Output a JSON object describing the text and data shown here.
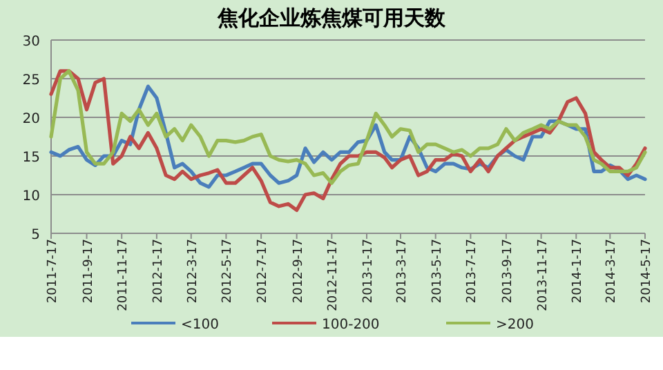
{
  "chart_data": {
    "type": "line",
    "title": "焦化企业炼焦煤可用天数",
    "x": [
      "2011-07-17",
      "2011-08-02",
      "2011-08-17",
      "2011-09-02",
      "2011-09-17",
      "2011-10-02",
      "2011-10-17",
      "2011-11-02",
      "2011-11-17",
      "2011-12-02",
      "2011-12-17",
      "2012-01-02",
      "2012-01-17",
      "2012-02-02",
      "2012-02-17",
      "2012-03-02",
      "2012-03-17",
      "2012-04-02",
      "2012-04-17",
      "2012-05-02",
      "2012-05-17",
      "2012-06-02",
      "2012-06-17",
      "2012-07-02",
      "2012-07-17",
      "2012-08-02",
      "2012-08-17",
      "2012-09-02",
      "2012-09-17",
      "2012-10-02",
      "2012-10-17",
      "2012-11-02",
      "2012-11-17",
      "2012-12-02",
      "2012-12-17",
      "2013-01-02",
      "2013-01-17",
      "2013-02-02",
      "2013-02-17",
      "2013-03-02",
      "2013-03-17",
      "2013-04-02",
      "2013-04-17",
      "2013-05-02",
      "2013-05-17",
      "2013-06-02",
      "2013-06-17",
      "2013-07-02",
      "2013-07-17",
      "2013-08-02",
      "2013-08-17",
      "2013-09-02",
      "2013-09-17",
      "2013-10-02",
      "2013-10-17",
      "2013-11-02",
      "2013-11-17",
      "2013-12-02",
      "2013-12-17",
      "2014-01-02",
      "2014-01-17",
      "2014-02-02",
      "2014-02-17",
      "2014-03-02",
      "2014-03-17",
      "2014-04-02",
      "2014-04-17",
      "2014-05-02",
      "2014-05-17"
    ],
    "series": [
      {
        "name": "<100",
        "color": "#4a7ebb",
        "values": [
          15.5,
          15,
          15.8,
          16.2,
          14.5,
          13.8,
          15,
          15,
          17,
          16.5,
          21,
          24,
          22.5,
          18,
          13.5,
          14,
          13,
          11.5,
          11,
          12.5,
          12.5,
          13,
          13.5,
          14,
          14,
          12.5,
          11.5,
          11.8,
          12.5,
          16,
          14.2,
          15.5,
          14.5,
          15.5,
          15.5,
          16.8,
          17,
          19,
          15.5,
          14.5,
          14.5,
          17.5,
          16,
          13.5,
          13,
          14,
          14,
          13.5,
          13.3,
          14,
          13.5,
          15,
          15.8,
          15,
          14.5,
          17.5,
          17.5,
          19.5,
          19.5,
          19,
          18.5,
          18.5,
          13,
          13,
          13.8,
          13.2,
          12,
          12.5,
          12
        ]
      },
      {
        "name": "100-200",
        "color": "#be4b48",
        "values": [
          23,
          26,
          26,
          25,
          21,
          24.5,
          25,
          14,
          15,
          17.5,
          16,
          18,
          16,
          12.5,
          12,
          13,
          12,
          12.5,
          12.8,
          13.2,
          11.5,
          11.5,
          12.5,
          13.5,
          11.8,
          9,
          8.5,
          8.8,
          8,
          10,
          10.2,
          9.5,
          12,
          14,
          15,
          15,
          15.5,
          15.5,
          14.8,
          13.5,
          14.5,
          15,
          12.5,
          13,
          14.5,
          14.5,
          15.3,
          15,
          13,
          14.5,
          13,
          15,
          16,
          17,
          17.5,
          18,
          18.5,
          18,
          19.5,
          22,
          22.5,
          20.5,
          15.5,
          14.5,
          13.5,
          13.5,
          12.5,
          14,
          16
        ]
      },
      {
        "name": ">200",
        "color": "#98b954",
        "values": [
          17.5,
          25,
          26,
          23.5,
          15.5,
          14,
          14,
          15.5,
          20.5,
          19.5,
          21,
          19,
          20.5,
          17.5,
          18.5,
          17,
          19,
          17.5,
          15,
          17,
          17,
          16.8,
          17,
          17.5,
          17.8,
          15,
          14.5,
          14.3,
          14.5,
          14,
          12.5,
          12.8,
          11.5,
          13,
          13.8,
          14,
          17,
          20.5,
          19,
          17.5,
          18.5,
          18.3,
          15.5,
          16.5,
          16.5,
          16,
          15.5,
          15.8,
          15,
          16,
          16,
          16.5,
          18.5,
          17,
          18,
          18.5,
          19,
          18.5,
          19.5,
          19,
          19,
          17.5,
          14.5,
          14,
          13,
          13,
          13,
          13.5,
          15.5
        ]
      }
    ],
    "xlim": [
      "2011-07-17",
      "2014-05-17"
    ],
    "xticks": [
      {
        "value": "2011-07-17",
        "label": "2011-7-17"
      },
      {
        "value": "2011-09-17",
        "label": "2011-9-17"
      },
      {
        "value": "2011-11-17",
        "label": "2011-11-17"
      },
      {
        "value": "2012-01-17",
        "label": "2012-1-17"
      },
      {
        "value": "2012-03-17",
        "label": "2012-3-17"
      },
      {
        "value": "2012-05-17",
        "label": "2012-5-17"
      },
      {
        "value": "2012-07-17",
        "label": "2012-7-17"
      },
      {
        "value": "2012-09-17",
        "label": "2012-9-17"
      },
      {
        "value": "2012-11-17",
        "label": "2012-11-17"
      },
      {
        "value": "2013-01-17",
        "label": "2013-1-17"
      },
      {
        "value": "2013-03-17",
        "label": "2013-3-17"
      },
      {
        "value": "2013-05-17",
        "label": "2013-5-17"
      },
      {
        "value": "2013-07-17",
        "label": "2013-7-17"
      },
      {
        "value": "2013-09-17",
        "label": "2013-9-17"
      },
      {
        "value": "2013-11-17",
        "label": "2013-11-17"
      },
      {
        "value": "2014-01-17",
        "label": "2014-1-17"
      },
      {
        "value": "2014-03-17",
        "label": "2014-3-17"
      },
      {
        "value": "2014-05-17",
        "label": "2014-5-17"
      }
    ],
    "ylim": [
      5,
      30
    ],
    "yticks": [
      5,
      10,
      15,
      20,
      25,
      30
    ],
    "grid": "y",
    "legend": "bottom",
    "marker": "none",
    "line_style": "solid"
  }
}
